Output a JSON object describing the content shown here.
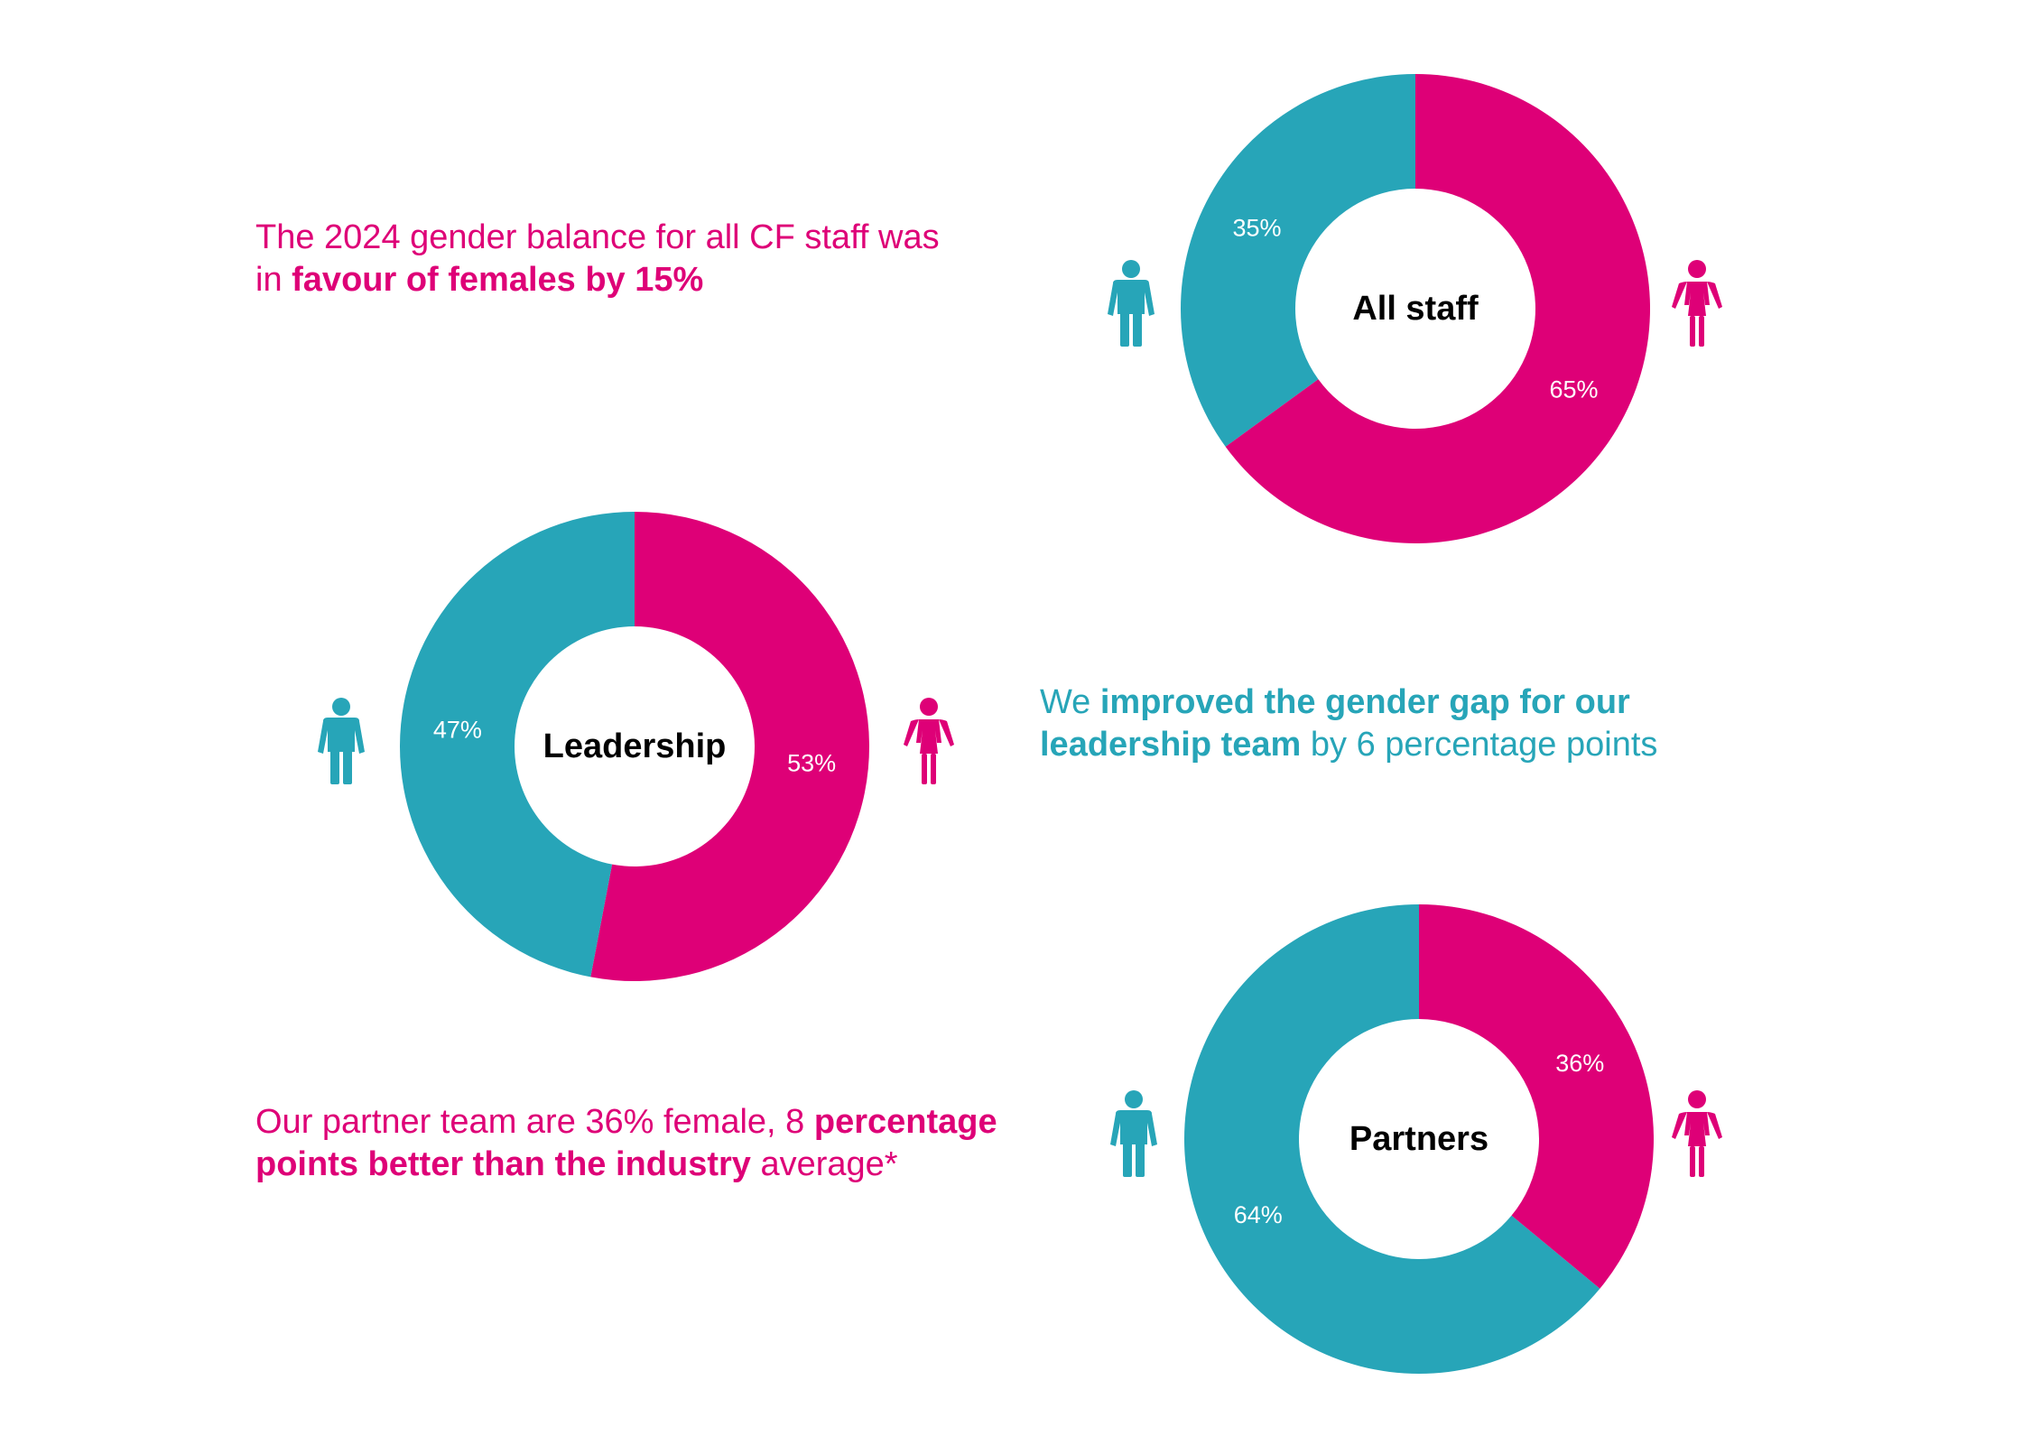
{
  "colors": {
    "female": "#de0077",
    "male": "#27a5b8"
  },
  "captions": {
    "all_staff": {
      "line1": "The 2024 gender balance for all CF staff was",
      "line2_prefix": "in ",
      "line2_bold": "favour of females by 15%"
    },
    "leadership": {
      "prefix": "We ",
      "bold1": "improved the gender gap for our",
      "bold2": "leadership team",
      "suffix": " by 6 percentage points"
    },
    "partners": {
      "prefix": "Our partner team are 36% female, 8 ",
      "bold1": "percentage",
      "bold2": "points better than the industry",
      "suffix": " average*"
    }
  },
  "icons": {
    "male": "male-person-icon",
    "female": "female-person-icon"
  },
  "chart_data": [
    {
      "type": "pie",
      "title": "All staff",
      "categories": [
        "Female",
        "Male"
      ],
      "values": [
        65,
        35
      ],
      "labels": [
        "65%",
        "35%"
      ]
    },
    {
      "type": "pie",
      "title": "Leadership",
      "categories": [
        "Female",
        "Male"
      ],
      "values": [
        53,
        47
      ],
      "labels": [
        "53%",
        "47%"
      ]
    },
    {
      "type": "pie",
      "title": "Partners",
      "categories": [
        "Female",
        "Male"
      ],
      "values": [
        36,
        64
      ],
      "labels": [
        "36%",
        "64%"
      ]
    }
  ]
}
